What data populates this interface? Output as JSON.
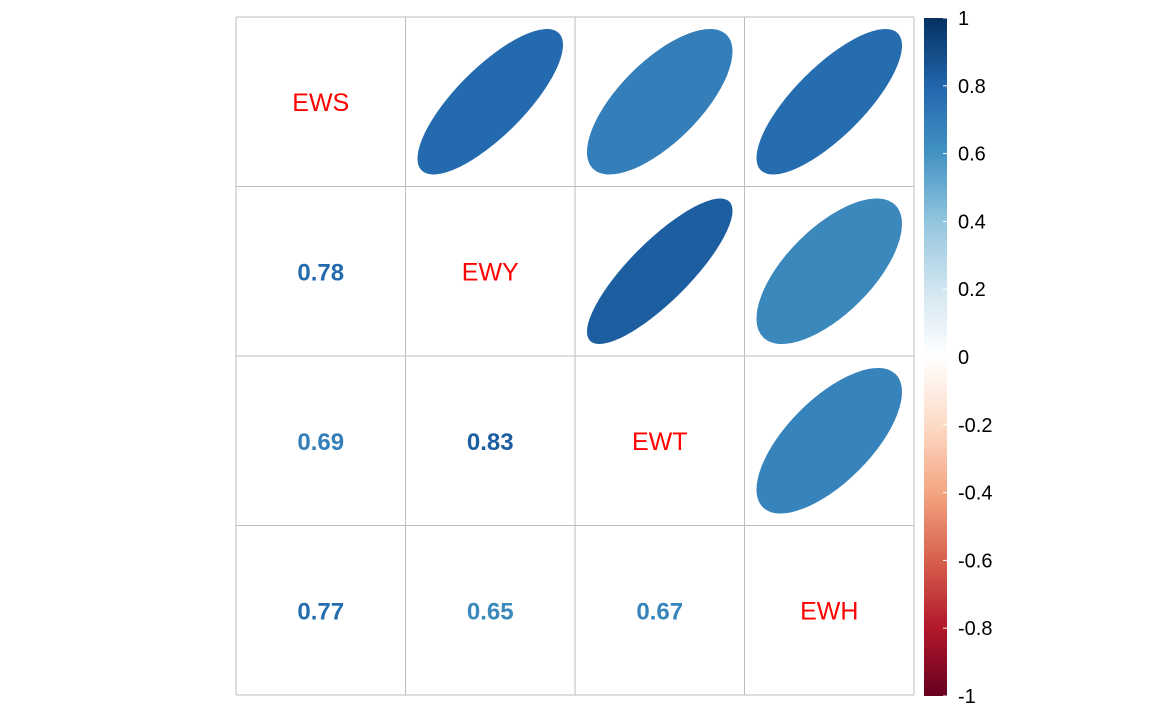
{
  "chart_data": {
    "type": "heatmap",
    "variables": [
      "EWS",
      "EWY",
      "EWT",
      "EWH"
    ],
    "correlations": [
      [
        1.0,
        0.78,
        0.69,
        0.77
      ],
      [
        0.78,
        1.0,
        0.83,
        0.65
      ],
      [
        0.69,
        0.83,
        1.0,
        0.67
      ],
      [
        0.77,
        0.65,
        0.67,
        1.0
      ]
    ],
    "lower": "number",
    "upper": "ellipse",
    "diagonal": "variable-name",
    "colorbar": {
      "range": [
        -1,
        1
      ],
      "ticks": [
        "1",
        "0.8",
        "0.6",
        "0.4",
        "0.2",
        "0",
        "-0.2",
        "-0.4",
        "-0.6",
        "-0.8",
        "-1"
      ]
    },
    "colors": {
      "label": "#ff0000",
      "grid": "#bebebe",
      "scale": [
        "#67001F",
        "#B2182B",
        "#D6604D",
        "#F4A582",
        "#FDDBC7",
        "#FFFFFF",
        "#D1E5F0",
        "#92C5DE",
        "#4393C3",
        "#2166AC",
        "#053061"
      ]
    }
  }
}
